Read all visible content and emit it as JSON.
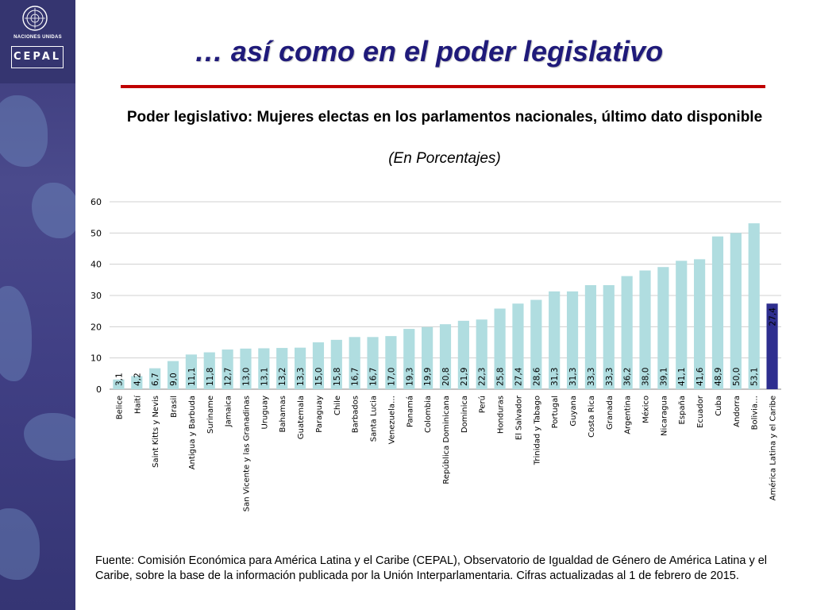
{
  "title": "… así como en el poder legislativo",
  "logos": {
    "un_text": "NACIONES UNIDAS",
    "cepal_text": "CEPAL"
  },
  "colors": {
    "bar": "#b0dde0",
    "highlight_bar": "#2e2e8f",
    "title": "#1f1a7a",
    "rule": "#c00000"
  },
  "chart_data": {
    "type": "bar",
    "title": "Poder legislativo: Mujeres electas en los parlamentos nacionales, último dato disponible",
    "subtitle": "(En Porcentajes)",
    "categories": [
      "Belice",
      "Haití",
      "Saint Kitts y Nevis",
      "Brasil",
      "Antigua y Barbuda",
      "Suriname",
      "Jamaica",
      "San Vicente y las Granadinas",
      "Uruguay",
      "Bahamas",
      "Guatemala",
      "Paraguay",
      "Chile",
      "Barbados",
      "Santa Lucia",
      "Venezuela…",
      "Panamá",
      "Colombia",
      "República Dominicana",
      "Dominica",
      "Perú",
      "Honduras",
      "El Salvador",
      "Trinidad y Tabago",
      "Portugal",
      "Guyana",
      "Costa Rica",
      "Granada",
      "Argentina",
      "México",
      "Nicaragua",
      "España",
      "Ecuador",
      "Cuba",
      "Andorra",
      "Bolivia…",
      "América Latina y el Caribe"
    ],
    "values": [
      3.1,
      4.2,
      6.7,
      9.0,
      11.1,
      11.8,
      12.7,
      13.0,
      13.1,
      13.2,
      13.3,
      15.0,
      15.8,
      16.7,
      16.7,
      17.0,
      19.3,
      19.9,
      20.8,
      21.9,
      22.3,
      25.8,
      27.4,
      28.6,
      31.3,
      31.3,
      33.3,
      33.3,
      36.2,
      38.0,
      39.1,
      41.1,
      41.6,
      48.9,
      50.0,
      53.1,
      27.4
    ],
    "value_labels": [
      "3,1",
      "4,2",
      "6,7",
      "9,0",
      "11,1",
      "11,8",
      "12,7",
      "13,0",
      "13,1",
      "13,2",
      "13,3",
      "15,0",
      "15,8",
      "16,7",
      "16,7",
      "17,0",
      "19,3",
      "19,9",
      "20,8",
      "21,9",
      "22,3",
      "25,8",
      "27,4",
      "28,6",
      "31,3",
      "31,3",
      "33,3",
      "33,3",
      "36,2",
      "38,0",
      "39,1",
      "41,1",
      "41,6",
      "48,9",
      "50,0",
      "53,1",
      "27,4"
    ],
    "highlight_index": 36,
    "ylim": [
      0,
      60
    ],
    "yticks": [
      0,
      10,
      20,
      30,
      40,
      50,
      60
    ],
    "grid": true,
    "xlabel": "",
    "ylabel": ""
  },
  "source": "Fuente: Comisión Económica para América Latina y el Caribe (CEPAL), Observatorio de Igualdad de Género de América Latina y el Caribe, sobre la base de la información publicada por la Unión Interparlamentaria. Cifras actualizadas al 1 de febrero de 2015."
}
